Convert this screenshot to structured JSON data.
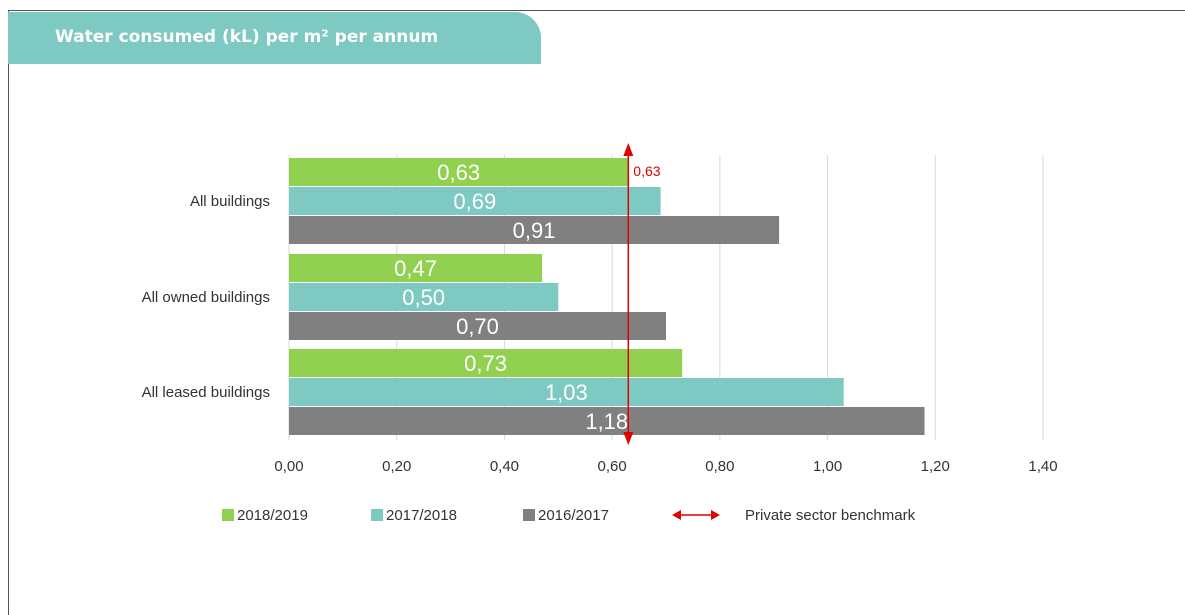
{
  "title": "Water consumed (kL) per m² per annum",
  "chart_data": {
    "type": "bar",
    "orientation": "horizontal",
    "categories": [
      "All buildings",
      "All owned buildings",
      "All leased buildings"
    ],
    "series": [
      {
        "name": "2018/2019",
        "color": "#92d050",
        "values": [
          0.63,
          0.47,
          0.73
        ],
        "labels": [
          "0,63",
          "0,47",
          "0,73"
        ]
      },
      {
        "name": "2017/2018",
        "color": "#7fc9c3",
        "values": [
          0.69,
          0.5,
          1.03
        ],
        "labels": [
          "0,69",
          "0,50",
          "1,03"
        ]
      },
      {
        "name": "2016/2017",
        "color": "#808080",
        "values": [
          0.91,
          0.7,
          1.18
        ],
        "labels": [
          "0,91",
          "0,70",
          "1,18"
        ]
      }
    ],
    "xlim": [
      0,
      1.4
    ],
    "xticks": [
      0,
      0.2,
      0.4,
      0.6,
      0.8,
      1.0,
      1.2,
      1.4
    ],
    "xtick_labels": [
      "0,00",
      "0,20",
      "0,40",
      "0,60",
      "0,80",
      "1,00",
      "1,20",
      "1,40"
    ],
    "grid": true,
    "legend_position": "bottom",
    "benchmark": {
      "name": "Private sector benchmark",
      "value": 0.63,
      "label": "0,63",
      "color": "#e00000"
    }
  }
}
